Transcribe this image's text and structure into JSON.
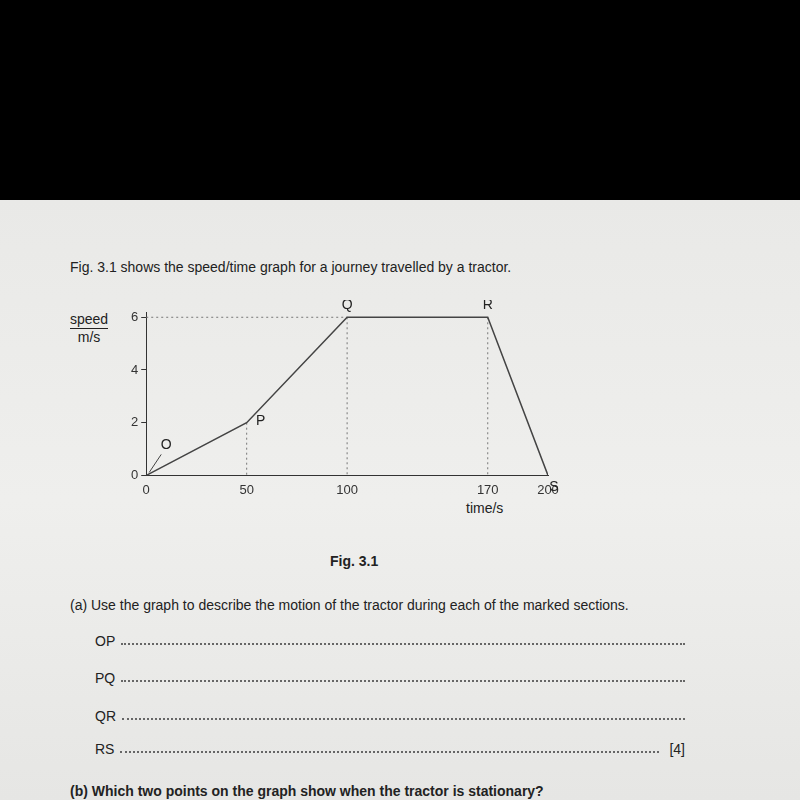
{
  "intro": "Fig. 3.1 shows the speed/time graph for a journey travelled by a tractor.",
  "chart_data": {
    "type": "line",
    "ylabel": "speed",
    "yunit": "m/s",
    "xlabel": "time/s",
    "x": [
      0,
      50,
      100,
      170,
      200
    ],
    "values": [
      0,
      2,
      6,
      6,
      0
    ],
    "point_labels": [
      "O",
      "P",
      "Q",
      "R",
      "S"
    ],
    "color": "#444444",
    "xlim": [
      0,
      200
    ],
    "xticks": [
      0,
      50,
      100,
      170,
      200
    ],
    "ylim": [
      0,
      6.2
    ],
    "yticks": [
      0,
      2,
      4,
      6
    ],
    "grid": false
  },
  "caption": "Fig. 3.1",
  "question_a": "(a) Use the graph to describe the motion of the tractor during each of the marked sections.",
  "sections": [
    "OP",
    "PQ",
    "QR",
    "RS"
  ],
  "marks": "[4]",
  "question_b": "(b) Which two points on the graph show when the tractor is stationary?"
}
